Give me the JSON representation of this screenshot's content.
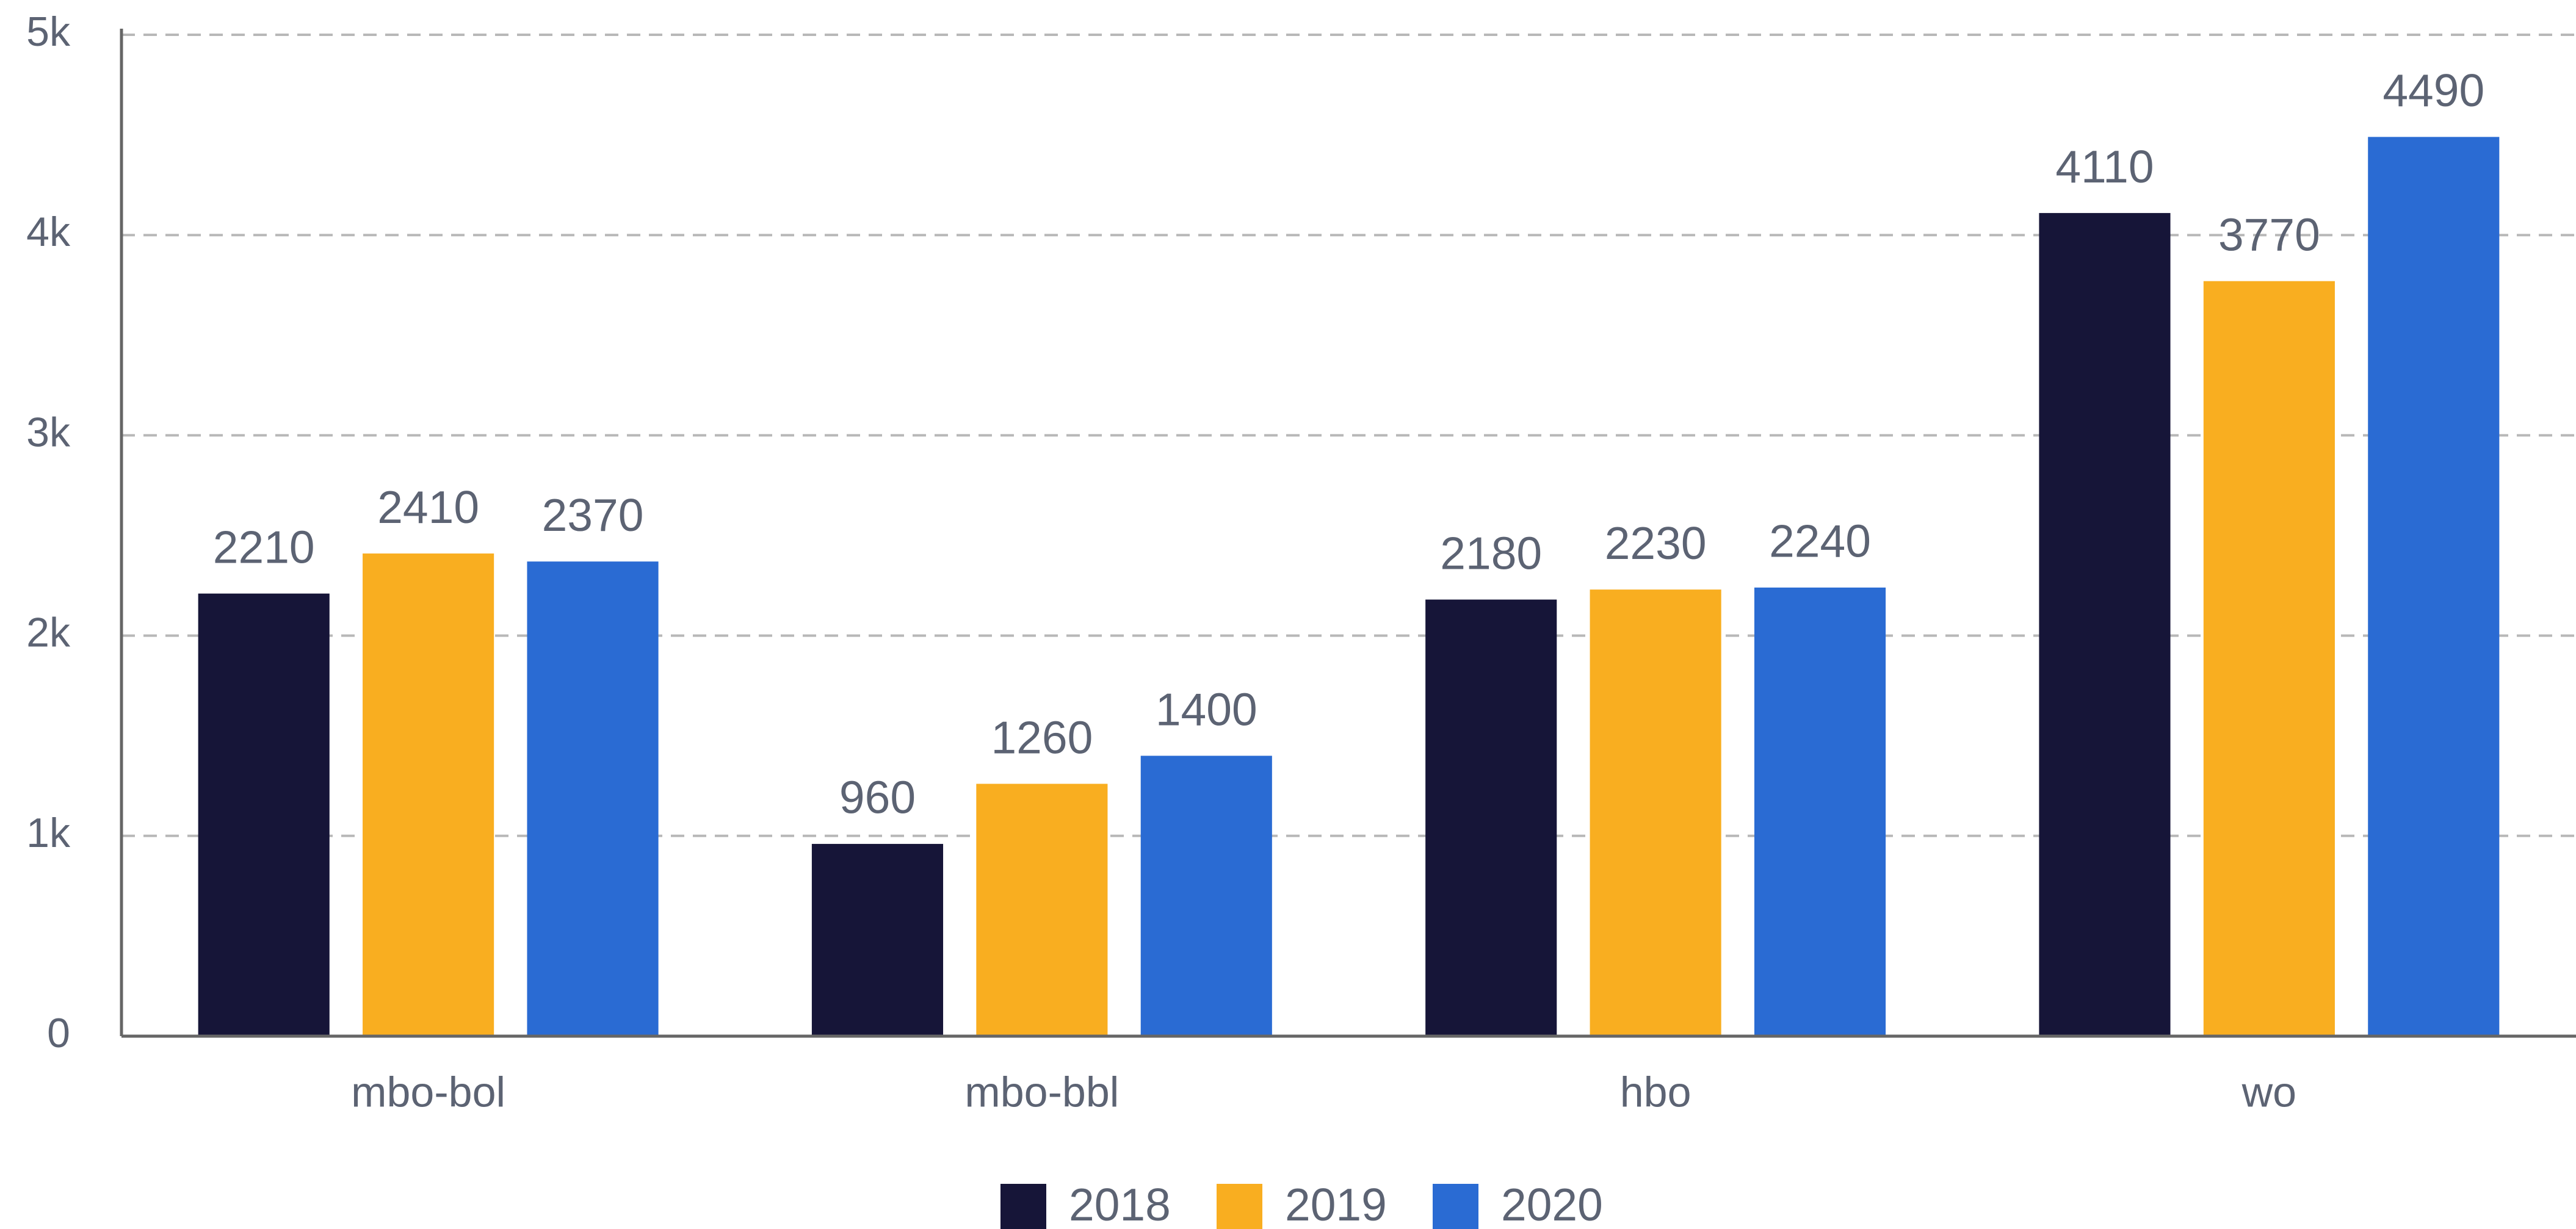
{
  "chart_data": {
    "type": "bar",
    "categories": [
      "mbo-bol",
      "mbo-bbl",
      "hbo",
      "wo"
    ],
    "series": [
      {
        "name": "2018",
        "color": "#161538",
        "values": [
          2210,
          960,
          2180,
          4110
        ]
      },
      {
        "name": "2019",
        "color": "#f9ae20",
        "values": [
          2410,
          1260,
          2230,
          3770
        ]
      },
      {
        "name": "2020",
        "color": "#2a6bd3",
        "values": [
          2370,
          1400,
          2240,
          4490
        ]
      }
    ],
    "ylim": [
      0,
      5000
    ],
    "yticks": [
      0,
      {
        "value": 1000,
        "label": "1k"
      },
      {
        "value": 2000,
        "label": "2k"
      },
      {
        "value": 3000,
        "label": "3k"
      },
      {
        "value": 4000,
        "label": "4k"
      },
      {
        "value": 5000,
        "label": "5k"
      }
    ],
    "grid": true,
    "legend": "bottom"
  }
}
